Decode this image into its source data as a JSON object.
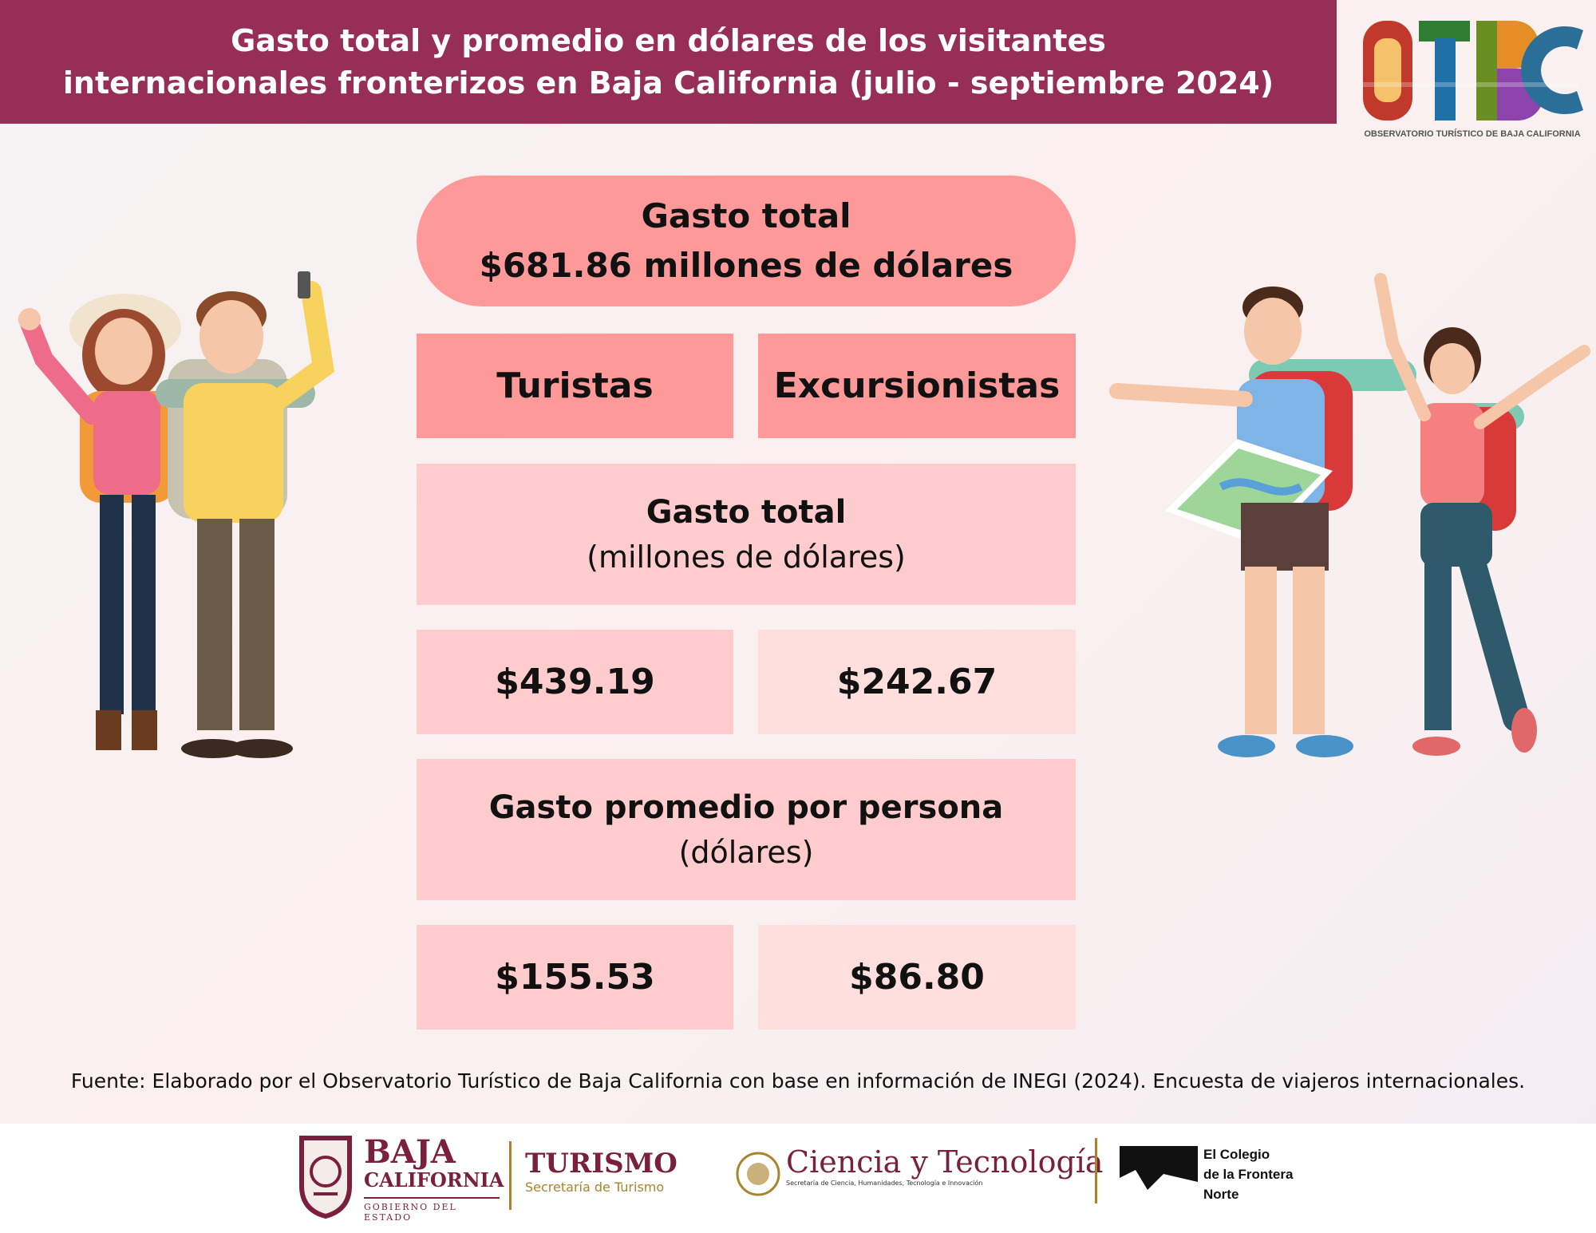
{
  "header": {
    "title_line1": "Gasto total y promedio en dólares de los visitantes",
    "title_line2": "internacionales fronterizos en Baja California (julio - septiembre 2024)"
  },
  "logo": {
    "wordmark": "OTBC",
    "caption": "OBSERVATORIO TURÍSTICO DE BAJA CALIFORNIA"
  },
  "summary": {
    "line1": "Gasto total",
    "line2": "$681.86 millones de dólares"
  },
  "categories": [
    "Turistas",
    "Excursionistas"
  ],
  "total_spending": {
    "title": "Gasto total",
    "unit": "(millones de dólares)",
    "values": [
      "$439.19",
      "$242.67"
    ]
  },
  "average_spending": {
    "title": "Gasto promedio por persona",
    "unit": "(dólares)",
    "values": [
      "$155.53",
      "$86.80"
    ]
  },
  "source": "Fuente: Elaborado por el Observatorio Turístico de Baja California con base en información de INEGI (2024). Encuesta de viajeros internacionales.",
  "footer": {
    "bc_name_line1": "BAJA",
    "bc_name_line2": "CALIFORNIA",
    "bc_subtitle": "GOBIERNO DEL ESTADO",
    "turismo_title": "TURISMO",
    "turismo_subtitle": "Secretaría de Turismo",
    "cyt_title": "Ciencia y Tecnología",
    "cyt_subtitle": "Secretaría de Ciencia, Humanidades, Tecnología e Innovación",
    "colef_line1": "El Colegio",
    "colef_line2": "de la Frontera",
    "colef_line3": "Norte"
  },
  "colors": {
    "header_bg": "#962e57",
    "pill": "#fe9999",
    "section": "#ffcccd",
    "value_light": "#ffdede",
    "brand_maroon": "#7a1f3d",
    "turismo_gold": "#a8842c"
  }
}
